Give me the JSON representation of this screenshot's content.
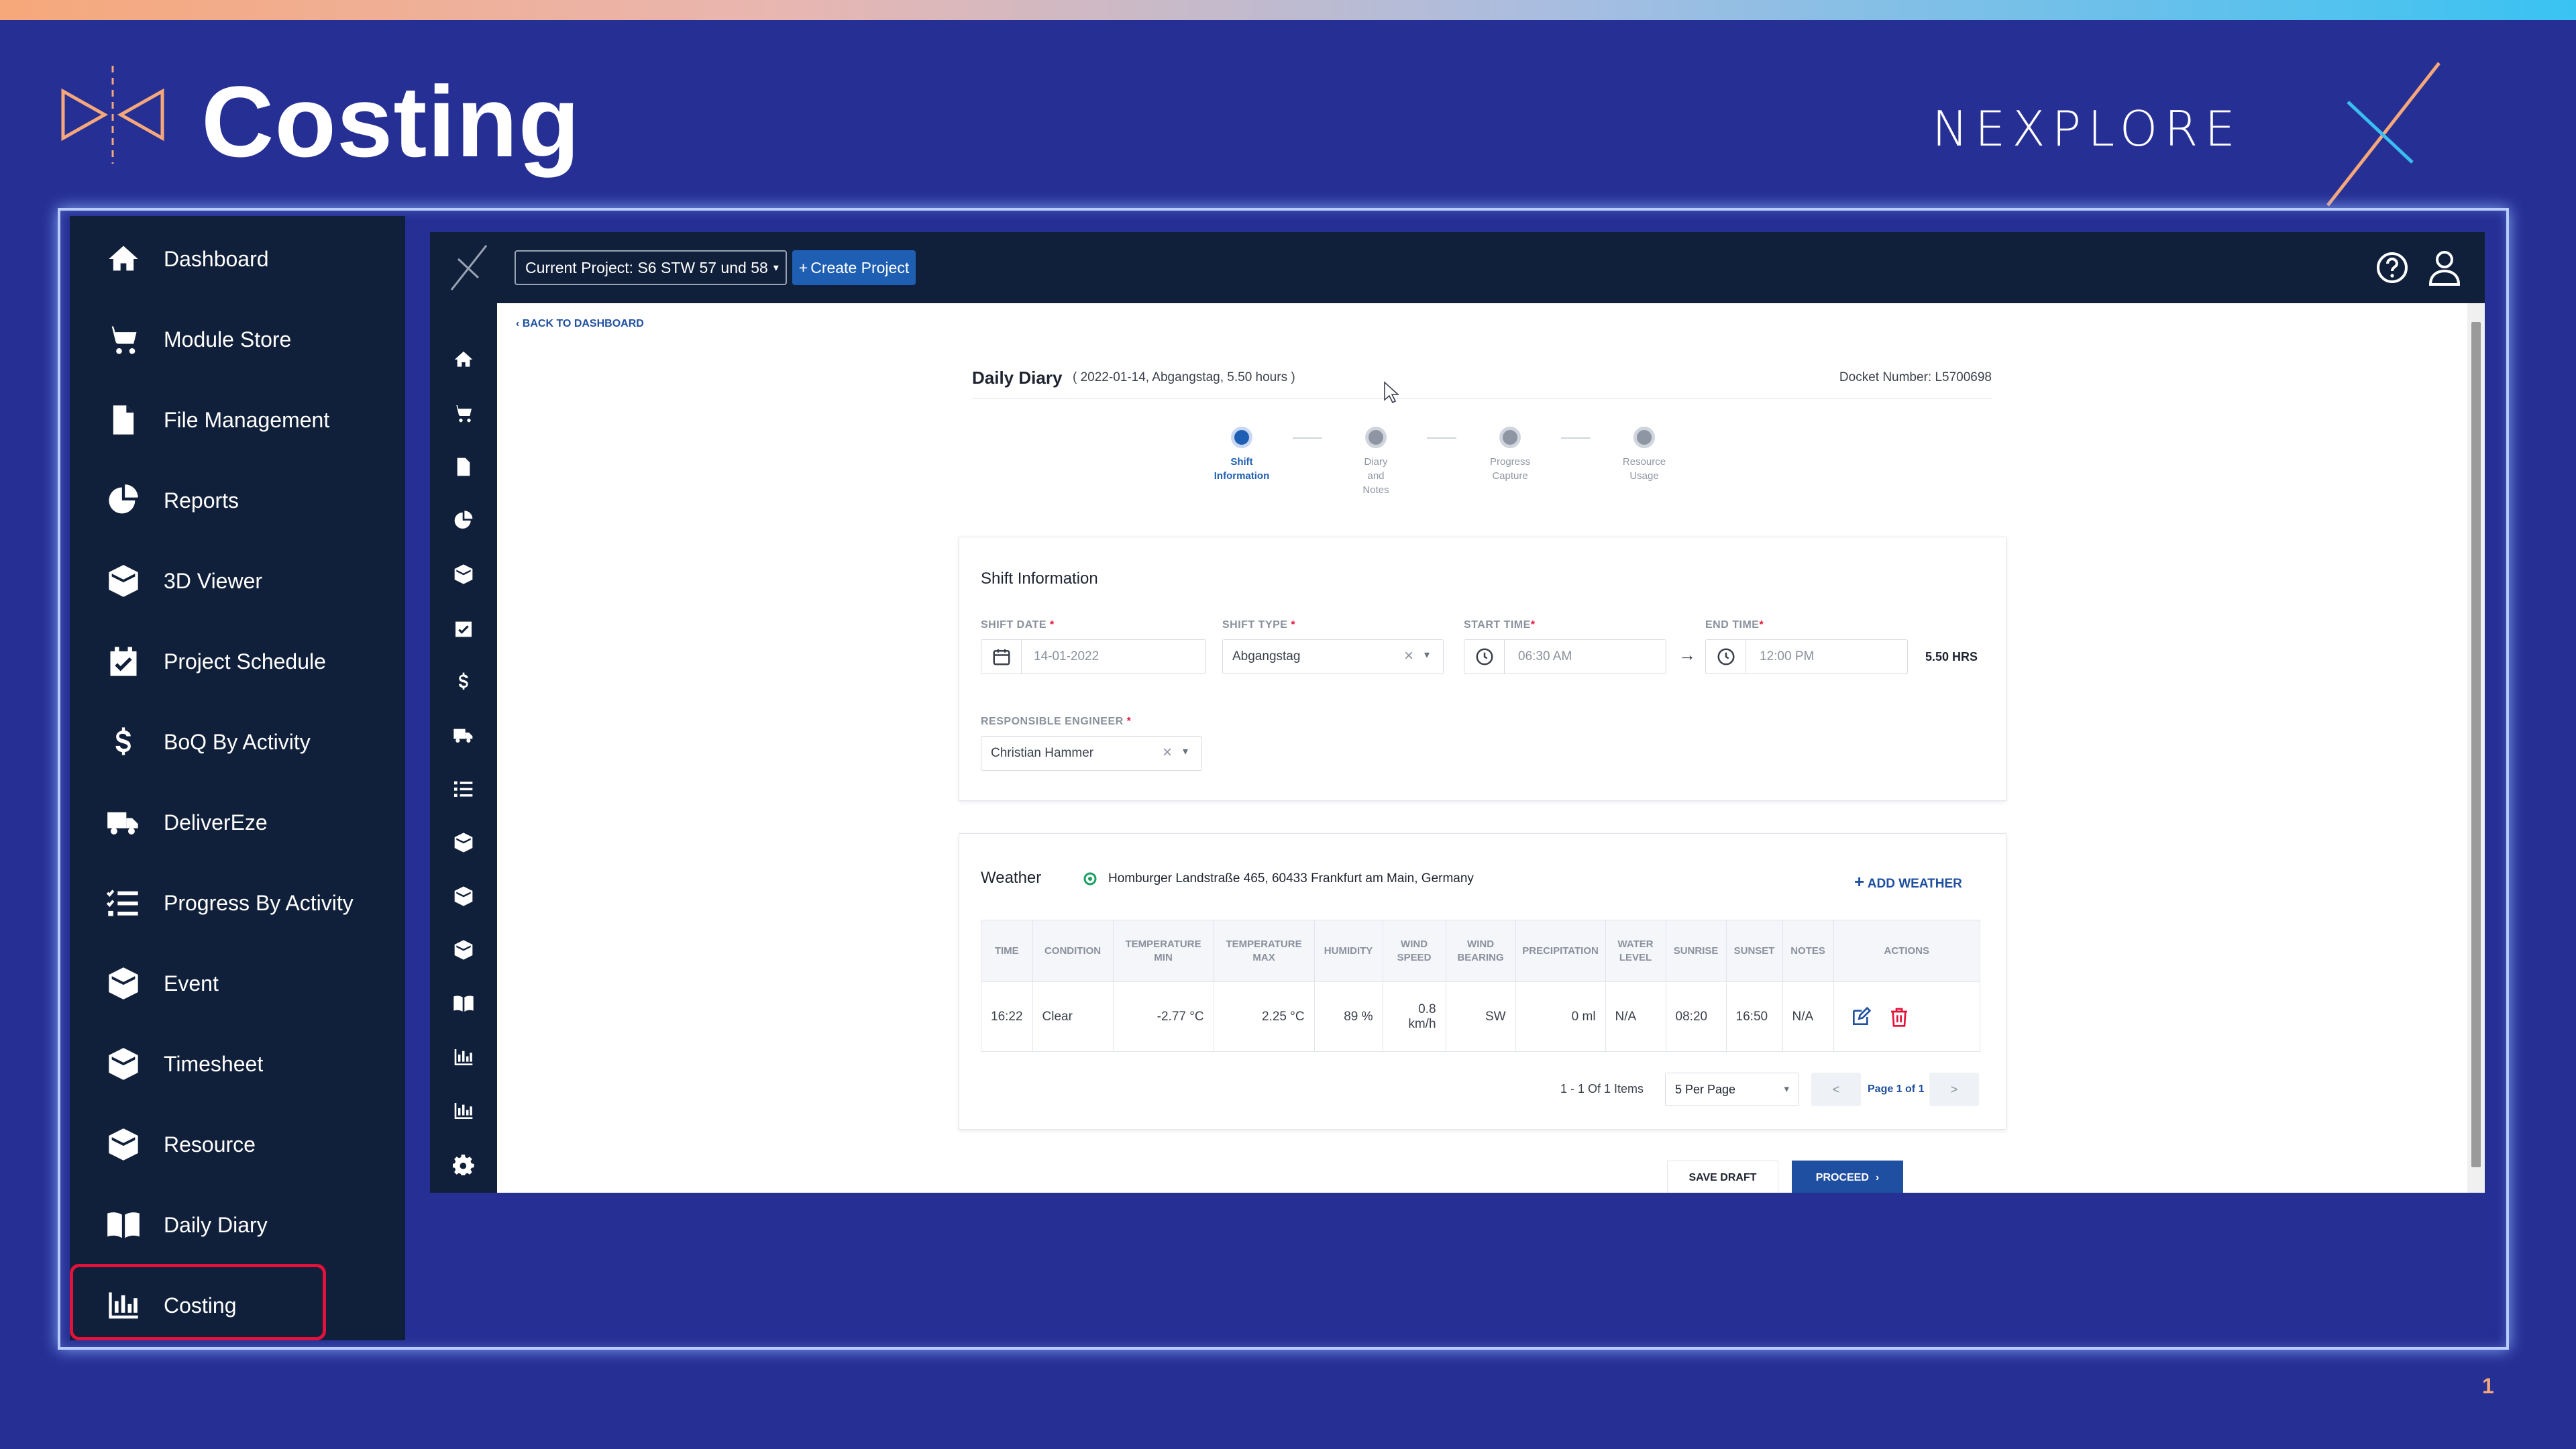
{
  "slide": {
    "title": "Costing",
    "brand": "NEXPLORE",
    "page_number": "1",
    "accent_color": "#f6a87a",
    "background_color": "#262f94"
  },
  "sidebar": {
    "items": [
      {
        "label": "Dashboard",
        "icon": "home-icon"
      },
      {
        "label": "Module Store",
        "icon": "cart-icon"
      },
      {
        "label": "File Management",
        "icon": "file-icon"
      },
      {
        "label": "Reports",
        "icon": "pie-chart-icon"
      },
      {
        "label": "3D Viewer",
        "icon": "cube-icon"
      },
      {
        "label": "Project Schedule",
        "icon": "calendar-check-icon"
      },
      {
        "label": "BoQ By Activity",
        "icon": "dollar-icon"
      },
      {
        "label": "DeliverEze",
        "icon": "truck-icon"
      },
      {
        "label": "Progress By Activity",
        "icon": "task-list-icon"
      },
      {
        "label": "Event",
        "icon": "cube-icon"
      },
      {
        "label": "Timesheet",
        "icon": "cube-icon"
      },
      {
        "label": "Resource",
        "icon": "cube-icon"
      },
      {
        "label": "Daily Diary",
        "icon": "book-icon"
      },
      {
        "label": "Costing",
        "icon": "bar-chart-icon"
      }
    ],
    "active": "Costing",
    "highlight_color": "#e3123a"
  },
  "app": {
    "project_select": "Current Project: S6 STW 57 und 58",
    "create_project": "Create Project",
    "back_link": "BACK TO DASHBOARD",
    "diary": {
      "title": "Daily Diary",
      "meta": "( 2022-01-14, Abgangstag, 5.50 hours )",
      "docket": "Docket Number: L5700698"
    },
    "steps": [
      {
        "lines": [
          "Shift",
          "Information"
        ],
        "active": true
      },
      {
        "lines": [
          "Diary",
          "and",
          "Notes"
        ],
        "active": false
      },
      {
        "lines": [
          "Progress",
          "Capture"
        ],
        "active": false
      },
      {
        "lines": [
          "Resource",
          "Usage"
        ],
        "active": false
      }
    ],
    "shift": {
      "title": "Shift Information",
      "shift_date_label": "SHIFT DATE",
      "shift_date": "14-01-2022",
      "shift_type_label": "SHIFT TYPE",
      "shift_type": "Abgangstag",
      "start_time_label": "START TIME",
      "start_time": "06:30 AM",
      "end_time_label": "END TIME",
      "end_time": "12:00 PM",
      "hours": "5.50 HRS",
      "engineer_label": "RESPONSIBLE ENGINEER",
      "engineer": "Christian Hammer",
      "required_mark": "*"
    },
    "weather": {
      "title": "Weather",
      "address": "Homburger Landstraße 465, 60433 Frankfurt am Main, Germany",
      "add_label": "ADD WEATHER",
      "columns": [
        [
          "TIME"
        ],
        [
          "CONDITION"
        ],
        [
          "TEMPERATURE",
          "MIN"
        ],
        [
          "TEMPERATURE",
          "MAX"
        ],
        [
          "HUMIDITY"
        ],
        [
          "WIND",
          "SPEED"
        ],
        [
          "WIND",
          "BEARING"
        ],
        [
          "PRECIPITATION"
        ],
        [
          "WATER",
          "LEVEL"
        ],
        [
          "SUNRISE"
        ],
        [
          "SUNSET"
        ],
        [
          "NOTES"
        ],
        [
          "ACTIONS"
        ]
      ],
      "rows": [
        {
          "time": "16:22",
          "condition": "Clear",
          "temp_min": "-2.77 °C",
          "temp_max": "2.25 °C",
          "humidity": "89 %",
          "wind_speed": [
            "0.8",
            "km/h"
          ],
          "wind_bearing": "SW",
          "precipitation": "0 ml",
          "water_level": "N/A",
          "sunrise": "08:20",
          "sunset": "16:50",
          "notes": "N/A"
        }
      ],
      "pagination": {
        "items_text": "1 - 1 Of 1 Items",
        "per_page": "5 Per Page",
        "page_text": "Page 1 of 1",
        "prev": "<",
        "next": ">"
      }
    },
    "buttons": {
      "save_draft": "SAVE DRAFT",
      "proceed": "PROCEED"
    },
    "primary_color": "#1f5fb3",
    "nav_color": "#11203a"
  }
}
